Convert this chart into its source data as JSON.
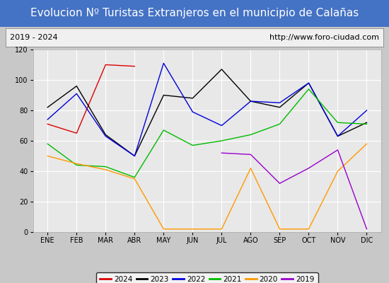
{
  "title": "Evolucion Nº Turistas Extranjeros en el municipio de Calañas",
  "subtitle_left": "2019 - 2024",
  "subtitle_right": "http://www.foro-ciudad.com",
  "xlabel_ticks": [
    "ENE",
    "FEB",
    "MAR",
    "ABR",
    "MAY",
    "JUN",
    "JUL",
    "AGO",
    "SEP",
    "OCT",
    "NOV",
    "DIC"
  ],
  "ylim": [
    0,
    120
  ],
  "yticks": [
    0,
    20,
    40,
    60,
    80,
    100,
    120
  ],
  "series": {
    "2024": {
      "color": "#dd0000",
      "values": [
        71,
        65,
        110,
        109,
        null,
        null,
        null,
        null,
        null,
        null,
        null,
        null
      ]
    },
    "2023": {
      "color": "#000000",
      "values": [
        82,
        96,
        64,
        50,
        90,
        88,
        107,
        86,
        82,
        98,
        63,
        72
      ]
    },
    "2022": {
      "color": "#0000dd",
      "values": [
        74,
        91,
        63,
        50,
        111,
        79,
        70,
        86,
        85,
        98,
        63,
        80
      ]
    },
    "2021": {
      "color": "#00bb00",
      "values": [
        58,
        44,
        43,
        36,
        67,
        57,
        60,
        64,
        71,
        94,
        72,
        71
      ]
    },
    "2020": {
      "color": "#ff9900",
      "values": [
        50,
        45,
        41,
        35,
        2,
        2,
        2,
        42,
        2,
        2,
        40,
        58
      ]
    },
    "2019": {
      "color": "#9900cc",
      "values": [
        null,
        null,
        null,
        null,
        null,
        null,
        52,
        51,
        32,
        42,
        54,
        2
      ]
    }
  },
  "title_bg_color": "#4472c4",
  "title_text_color": "#ffffff",
  "subtitle_bg_color": "#f0f0f0",
  "plot_bg_color": "#e8e8e8",
  "fig_bg_color": "#c8c8c8",
  "grid_color": "#ffffff",
  "title_fontsize": 11,
  "subtitle_fontsize": 8,
  "axis_label_fontsize": 7,
  "legend_fontsize": 7.5
}
